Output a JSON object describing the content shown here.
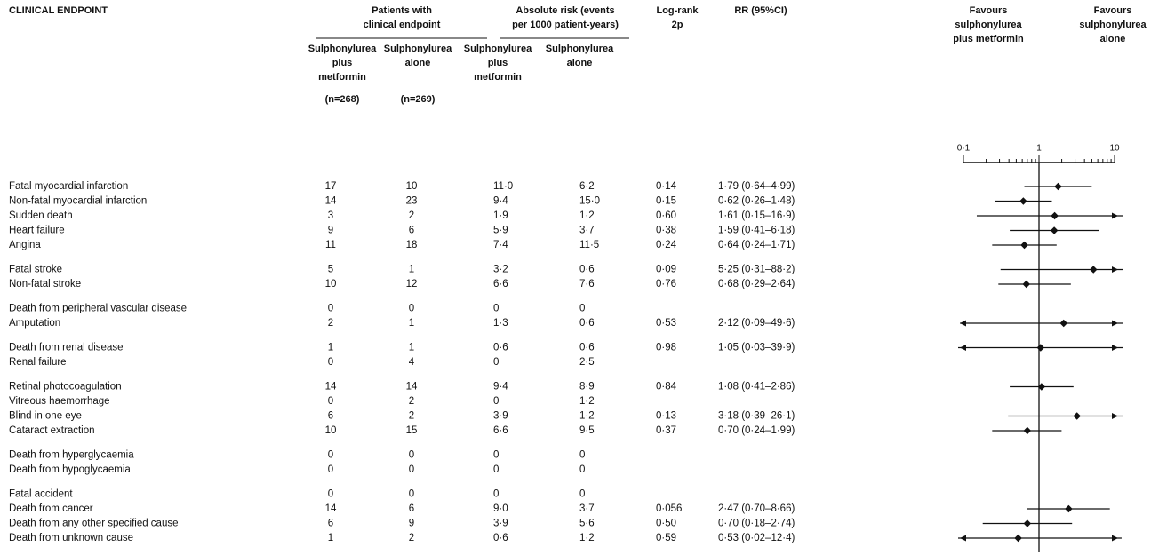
{
  "header": {
    "endpoint": "CLINICAL ENDPOINT",
    "patients": [
      "Patients with",
      "clinical endpoint"
    ],
    "risk": [
      "Absolute risk (events",
      "per 1000 patient-years)"
    ],
    "logrank": [
      "Log-rank",
      "2p"
    ],
    "rr": "RR (95%CI)",
    "favours_left": [
      "Favours",
      "sulphonylurea",
      "plus metformin"
    ],
    "favours_right": [
      "Favours",
      "sulphonylurea",
      "alone"
    ],
    "sub_combo": [
      "Sulphonylurea",
      "plus",
      "metformin"
    ],
    "sub_alone": [
      "Sulphonylurea",
      "alone"
    ],
    "n_combo": "(n=268)",
    "n_alone": "(n=269)",
    "risk_combo": [
      "Sulphonylurea",
      "plus",
      "metformin"
    ],
    "risk_alone": [
      "Sulphonylurea",
      "alone"
    ]
  },
  "axis": {
    "xlim": [
      0.1,
      10
    ],
    "log": true,
    "xticks": [
      {
        "value": 0.1,
        "label": "0·1"
      },
      1,
      10
    ],
    "minor_ticks": [
      0.2,
      0.3,
      0.4,
      0.5,
      0.6,
      0.7,
      0.8,
      0.9,
      2,
      3,
      4,
      5,
      6,
      7,
      8,
      9
    ]
  },
  "groups": [
    {
      "rows": [
        {
          "endpoint": "Fatal myocardial infarction",
          "n1": 17,
          "n2": 10,
          "risk1": "11·0",
          "risk2": "6·2",
          "p": "0·14",
          "rr_ci": "1·79 (0·64–4·99)",
          "rr": [
            1.79,
            0.64,
            4.99
          ]
        },
        {
          "endpoint": "Non-fatal myocardial infarction",
          "n1": 14,
          "n2": 23,
          "risk1": "9·4",
          "risk2": "15·0",
          "p": "0·15",
          "rr_ci": "0·62 (0·26–1·48)",
          "rr": [
            0.62,
            0.26,
            1.48
          ]
        },
        {
          "endpoint": "Sudden death",
          "n1": 3,
          "n2": 2,
          "risk1": "1·9",
          "risk2": "1·2",
          "p": "0·60",
          "rr_ci": "1·61 (0·15–16·9)",
          "rr": [
            1.61,
            0.15,
            16.9
          ]
        },
        {
          "endpoint": "Heart failure",
          "n1": 9,
          "n2": 6,
          "risk1": "5·9",
          "risk2": "3·7",
          "p": "0·38",
          "rr_ci": "1·59 (0·41–6·18)",
          "rr": [
            1.59,
            0.41,
            6.18
          ]
        },
        {
          "endpoint": "Angina",
          "n1": 11,
          "n2": 18,
          "risk1": "7·4",
          "risk2": "11·5",
          "p": "0·24",
          "rr_ci": "0·64 (0·24–1·71)",
          "rr": [
            0.64,
            0.24,
            1.71
          ]
        }
      ]
    },
    {
      "rows": [
        {
          "endpoint": "Fatal stroke",
          "n1": 5,
          "n2": 1,
          "risk1": "3·2",
          "risk2": "0·6",
          "p": "0·09",
          "rr_ci": "5·25 (0·31–88·2)",
          "rr": [
            5.25,
            0.31,
            88.2
          ]
        },
        {
          "endpoint": "Non-fatal stroke",
          "n1": 10,
          "n2": 12,
          "risk1": "6·6",
          "risk2": "7·6",
          "p": "0·76",
          "rr_ci": "0·68 (0·29–2·64)",
          "rr": [
            0.68,
            0.29,
            2.64
          ]
        }
      ]
    },
    {
      "rows": [
        {
          "endpoint": "Death from peripheral vascular disease",
          "n1": 0,
          "n2": 0,
          "risk1": "0",
          "risk2": "0"
        },
        {
          "endpoint": "Amputation",
          "n1": 2,
          "n2": 1,
          "risk1": "1·3",
          "risk2": "0·6",
          "p": "0·53",
          "rr_ci": "2·12 (0·09–49·6)",
          "rr": [
            2.12,
            0.09,
            49.6
          ]
        }
      ]
    },
    {
      "rows": [
        {
          "endpoint": "Death from renal disease",
          "n1": 1,
          "n2": 1,
          "risk1": "0·6",
          "risk2": "0·6",
          "p": "0·98",
          "rr_ci": "1·05 (0·03–39·9)",
          "rr": [
            1.05,
            0.03,
            39.9
          ]
        },
        {
          "endpoint": "Renal failure",
          "n1": 0,
          "n2": 4,
          "risk1": "0",
          "risk2": "2·5"
        }
      ]
    },
    {
      "rows": [
        {
          "endpoint": "Retinal photocoagulation",
          "n1": 14,
          "n2": 14,
          "risk1": "9·4",
          "risk2": "8·9",
          "p": "0·84",
          "rr_ci": "1·08 (0·41–2·86)",
          "rr": [
            1.08,
            0.41,
            2.86
          ]
        },
        {
          "endpoint": "Vitreous haemorrhage",
          "n1": 0,
          "n2": 2,
          "risk1": "0",
          "risk2": "1·2"
        },
        {
          "endpoint": "Blind in one eye",
          "n1": 6,
          "n2": 2,
          "risk1": "3·9",
          "risk2": "1·2",
          "p": "0·13",
          "rr_ci": "3·18 (0·39–26·1)",
          "rr": [
            3.18,
            0.39,
            26.1
          ]
        },
        {
          "endpoint": "Cataract extraction",
          "n1": 10,
          "n2": 15,
          "risk1": "6·6",
          "risk2": "9·5",
          "p": "0·37",
          "rr_ci": "0·70 (0·24–1·99)",
          "rr": [
            0.7,
            0.24,
            1.99
          ]
        }
      ]
    },
    {
      "rows": [
        {
          "endpoint": "Death from hyperglycaemia",
          "n1": 0,
          "n2": 0,
          "risk1": "0",
          "risk2": "0"
        },
        {
          "endpoint": "Death from hypoglycaemia",
          "n1": 0,
          "n2": 0,
          "risk1": "0",
          "risk2": "0"
        }
      ]
    },
    {
      "rows": [
        {
          "endpoint": "Fatal accident",
          "n1": 0,
          "n2": 0,
          "risk1": "0",
          "risk2": "0"
        },
        {
          "endpoint": "Death from cancer",
          "n1": 14,
          "n2": 6,
          "risk1": "9·0",
          "risk2": "3·7",
          "p": "0·056",
          "rr_ci": "2·47 (0·70–8·66)",
          "rr": [
            2.47,
            0.7,
            8.66
          ]
        },
        {
          "endpoint": "Death from any other specified cause",
          "n1": 6,
          "n2": 9,
          "risk1": "3·9",
          "risk2": "5·6",
          "p": "0·50",
          "rr_ci": "0·70 (0·18–2·74)",
          "rr": [
            0.7,
            0.18,
            2.74
          ]
        },
        {
          "endpoint": "Death from unknown cause",
          "n1": 1,
          "n2": 2,
          "risk1": "0·6",
          "risk2": "1·2",
          "p": "0·59",
          "rr_ci": "0·53 (0·02–12·4)",
          "rr": [
            0.53,
            0.02,
            12.4
          ]
        }
      ]
    }
  ]
}
